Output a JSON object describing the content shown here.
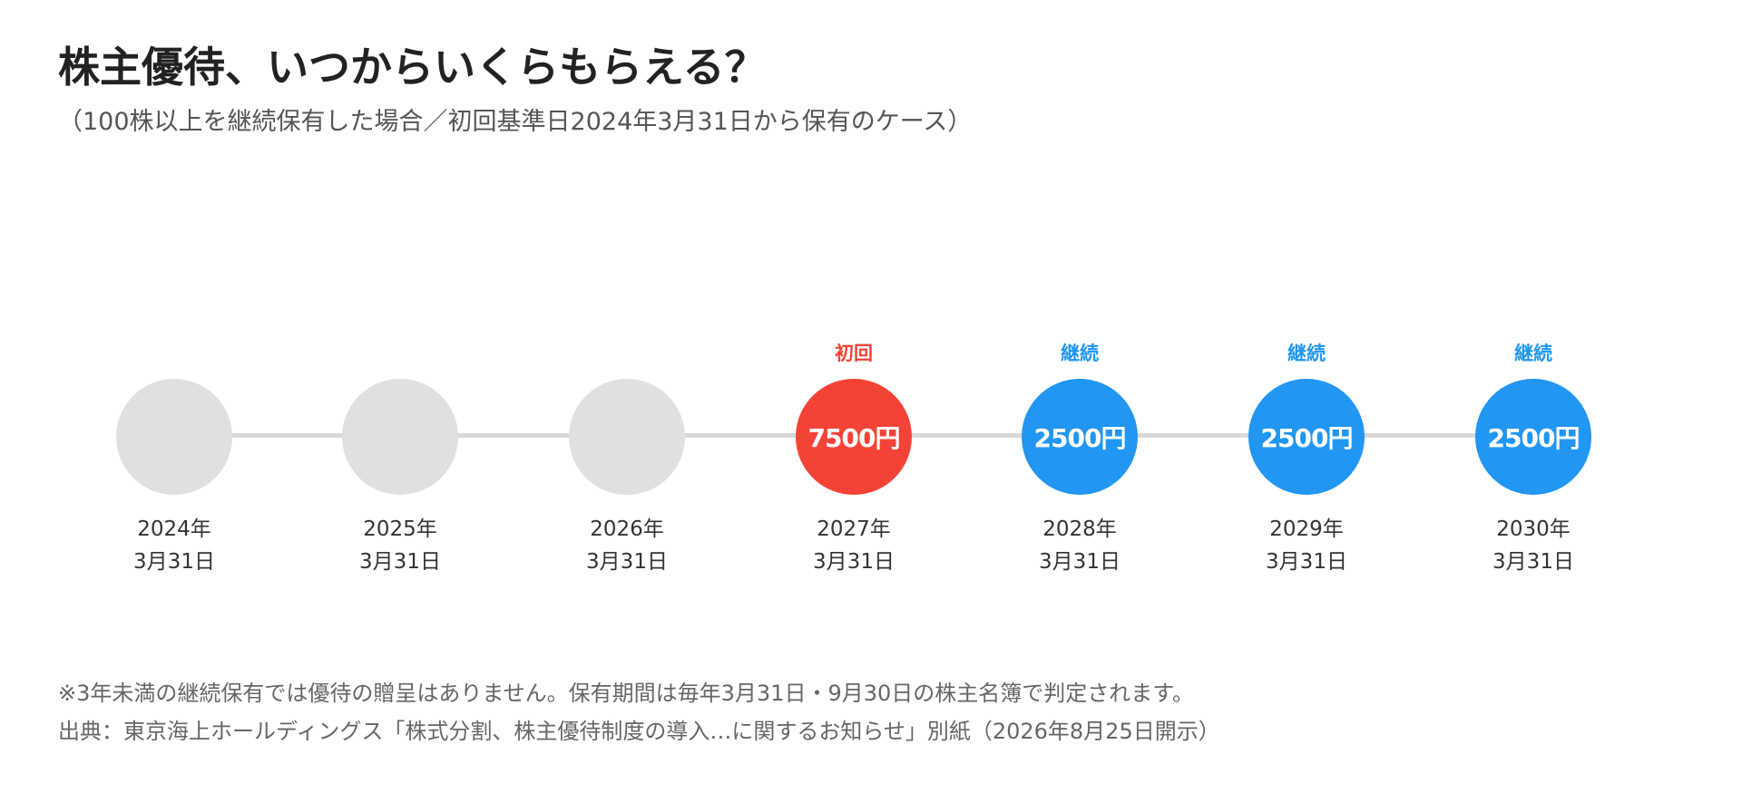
{
  "title": "株主優待、いつからいくらもらえる？",
  "subtitle": "（100株以上を継続保有した場合／初回基準日2024年3月31日から保有のケース）",
  "colors": {
    "inactive": "#e0e0e0",
    "first": "#f44336",
    "continue": "#2196f3",
    "line": "#d9d9d9"
  },
  "timeline": [
    {
      "tag": "",
      "amount": "",
      "year": "2024年",
      "day": "3月31日",
      "status": "inactive"
    },
    {
      "tag": "",
      "amount": "",
      "year": "2025年",
      "day": "3月31日",
      "status": "inactive"
    },
    {
      "tag": "",
      "amount": "",
      "year": "2026年",
      "day": "3月31日",
      "status": "inactive"
    },
    {
      "tag": "初回",
      "amount": "7500円",
      "year": "2027年",
      "day": "3月31日",
      "status": "first"
    },
    {
      "tag": "継続",
      "amount": "2500円",
      "year": "2028年",
      "day": "3月31日",
      "status": "continue"
    },
    {
      "tag": "継続",
      "amount": "2500円",
      "year": "2029年",
      "day": "3月31日",
      "status": "continue"
    },
    {
      "tag": "継続",
      "amount": "2500円",
      "year": "2030年",
      "day": "3月31日",
      "status": "continue"
    }
  ],
  "notes": {
    "note": "※3年未満の継続保有では優待の贈呈はありません。保有期間は毎年3月31日・9月30日の株主名簿で判定されます。",
    "source": "出典：東京海上ホールディングス「株式分割、株主優待制度の導入…に関するお知らせ」別紙（2026年8月25日開示）"
  }
}
